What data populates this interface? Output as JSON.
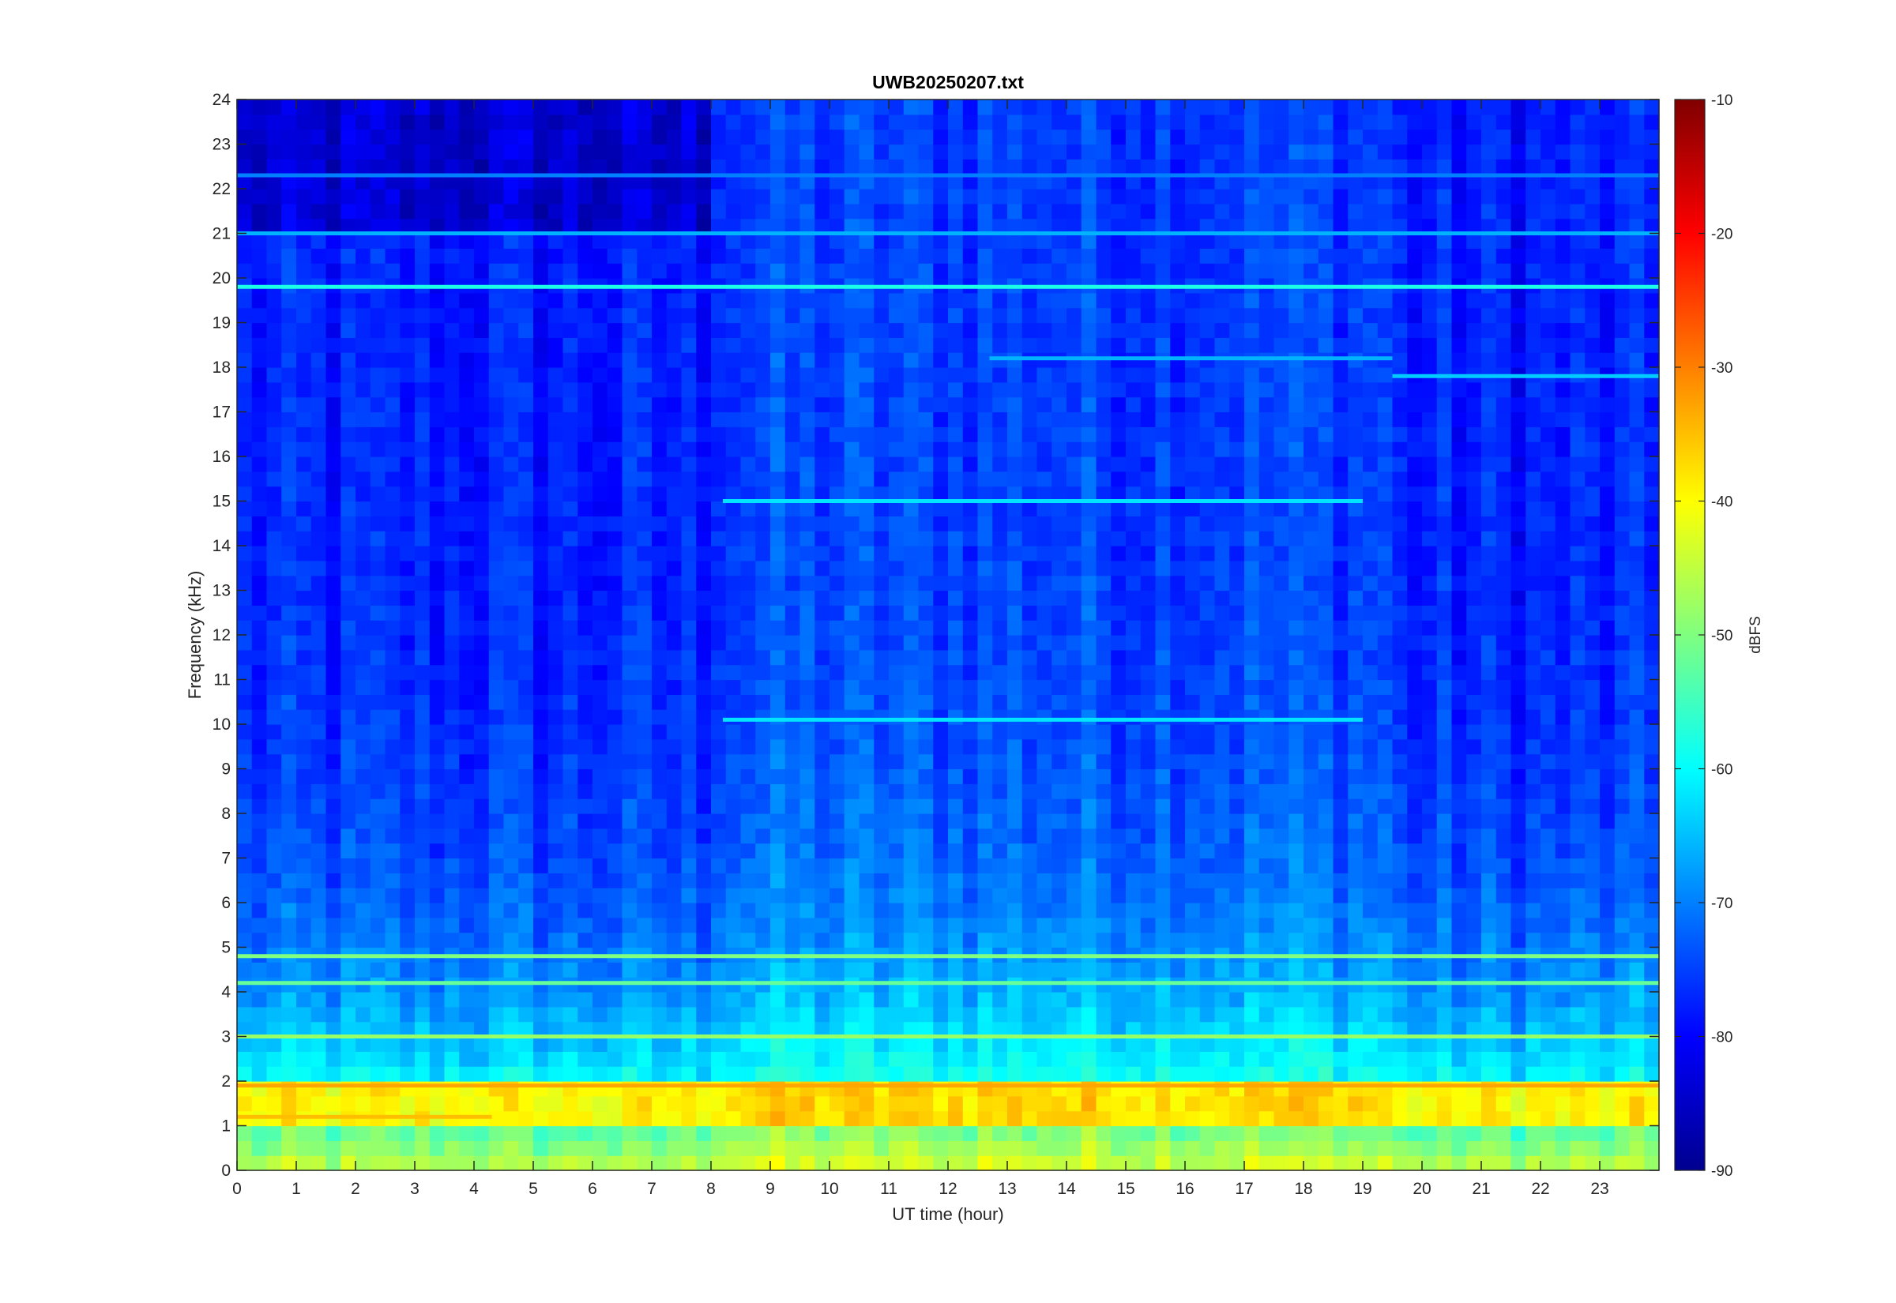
{
  "chart_data": {
    "type": "heatmap",
    "title": "UWB20250207.txt",
    "xlabel": "UT time (hour)",
    "ylabel": "Frequency (kHz)",
    "xlim": [
      0,
      24
    ],
    "ylim": [
      0,
      24
    ],
    "x_ticks": [
      "0",
      "1",
      "2",
      "3",
      "4",
      "5",
      "6",
      "7",
      "8",
      "9",
      "10",
      "11",
      "12",
      "13",
      "14",
      "15",
      "16",
      "17",
      "18",
      "19",
      "20",
      "21",
      "22",
      "23"
    ],
    "y_ticks": [
      "0",
      "1",
      "2",
      "3",
      "4",
      "5",
      "6",
      "7",
      "8",
      "9",
      "10",
      "11",
      "12",
      "13",
      "14",
      "15",
      "16",
      "17",
      "18",
      "19",
      "20",
      "21",
      "22",
      "23",
      "24"
    ],
    "colormap": "jet",
    "colorbar": {
      "label": "dBFS",
      "range": [
        -90,
        -10
      ],
      "ticks": [
        "-10",
        "-20",
        "-30",
        "-40",
        "-50",
        "-60",
        "-70",
        "-80",
        "-90"
      ]
    },
    "description_values": {
      "background_level_high_freq_dbfs": -78,
      "background_level_low_freq_dbfs": -45,
      "strongest_band_khz": [
        1,
        2
      ],
      "strongest_level_dbfs": -32
    },
    "persistent_tones_khz": [
      {
        "freq": 19.8,
        "level": -58,
        "x_start": 0,
        "x_end": 24
      },
      {
        "freq": 21.0,
        "level": -66,
        "x_start": 0,
        "x_end": 24
      },
      {
        "freq": 22.3,
        "level": -70,
        "x_start": 0,
        "x_end": 24
      },
      {
        "freq": 18.2,
        "level": -66,
        "x_start": 12.7,
        "x_end": 19.5
      },
      {
        "freq": 17.8,
        "level": -64,
        "x_start": 19.5,
        "x_end": 24
      },
      {
        "freq": 15.0,
        "level": -62,
        "x_start": 8.2,
        "x_end": 19.0
      },
      {
        "freq": 10.1,
        "level": -62,
        "x_start": 8.2,
        "x_end": 19.0
      },
      {
        "freq": 4.8,
        "level": -50,
        "x_start": 0,
        "x_end": 24
      },
      {
        "freq": 4.2,
        "level": -52,
        "x_start": 0,
        "x_end": 24
      },
      {
        "freq": 3.0,
        "level": -48,
        "x_start": 0,
        "x_end": 24
      },
      {
        "freq": 1.9,
        "level": -33,
        "x_start": 0,
        "x_end": 24
      },
      {
        "freq": 1.2,
        "level": -35,
        "x_start": 0,
        "x_end": 4.3
      }
    ],
    "grid": false,
    "legend": "none"
  }
}
